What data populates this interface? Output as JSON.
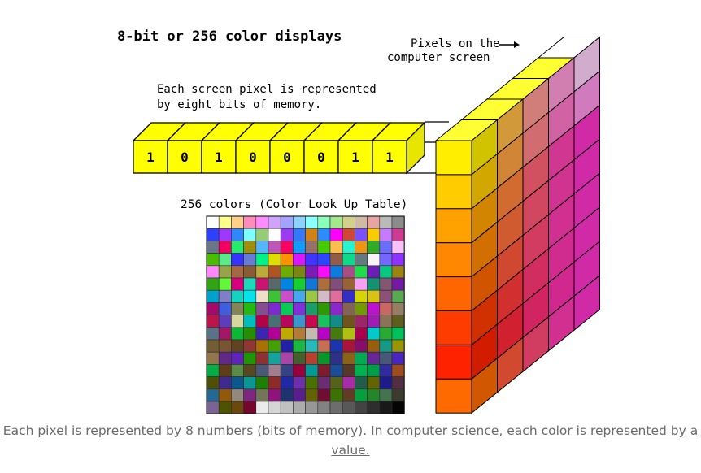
{
  "diagram": {
    "title": "8-bit or 256 color displays",
    "pixel_label": [
      "Pixels on the",
      "computer screen"
    ],
    "memory_label": [
      "Each screen pixel is represented",
      "by eight bits of memory."
    ],
    "table_label": "256 colors (Color Look Up Table)",
    "bits": [
      "1",
      "0",
      "1",
      "0",
      "0",
      "0",
      "1",
      "1"
    ],
    "colors": {
      "bit_fill": "#ffff00",
      "stroke": "#000000",
      "text": "#000000"
    }
  },
  "caption": "Each pixel is represented by 8 numbers (bits of memory). In computer science, each color is represented by a value."
}
